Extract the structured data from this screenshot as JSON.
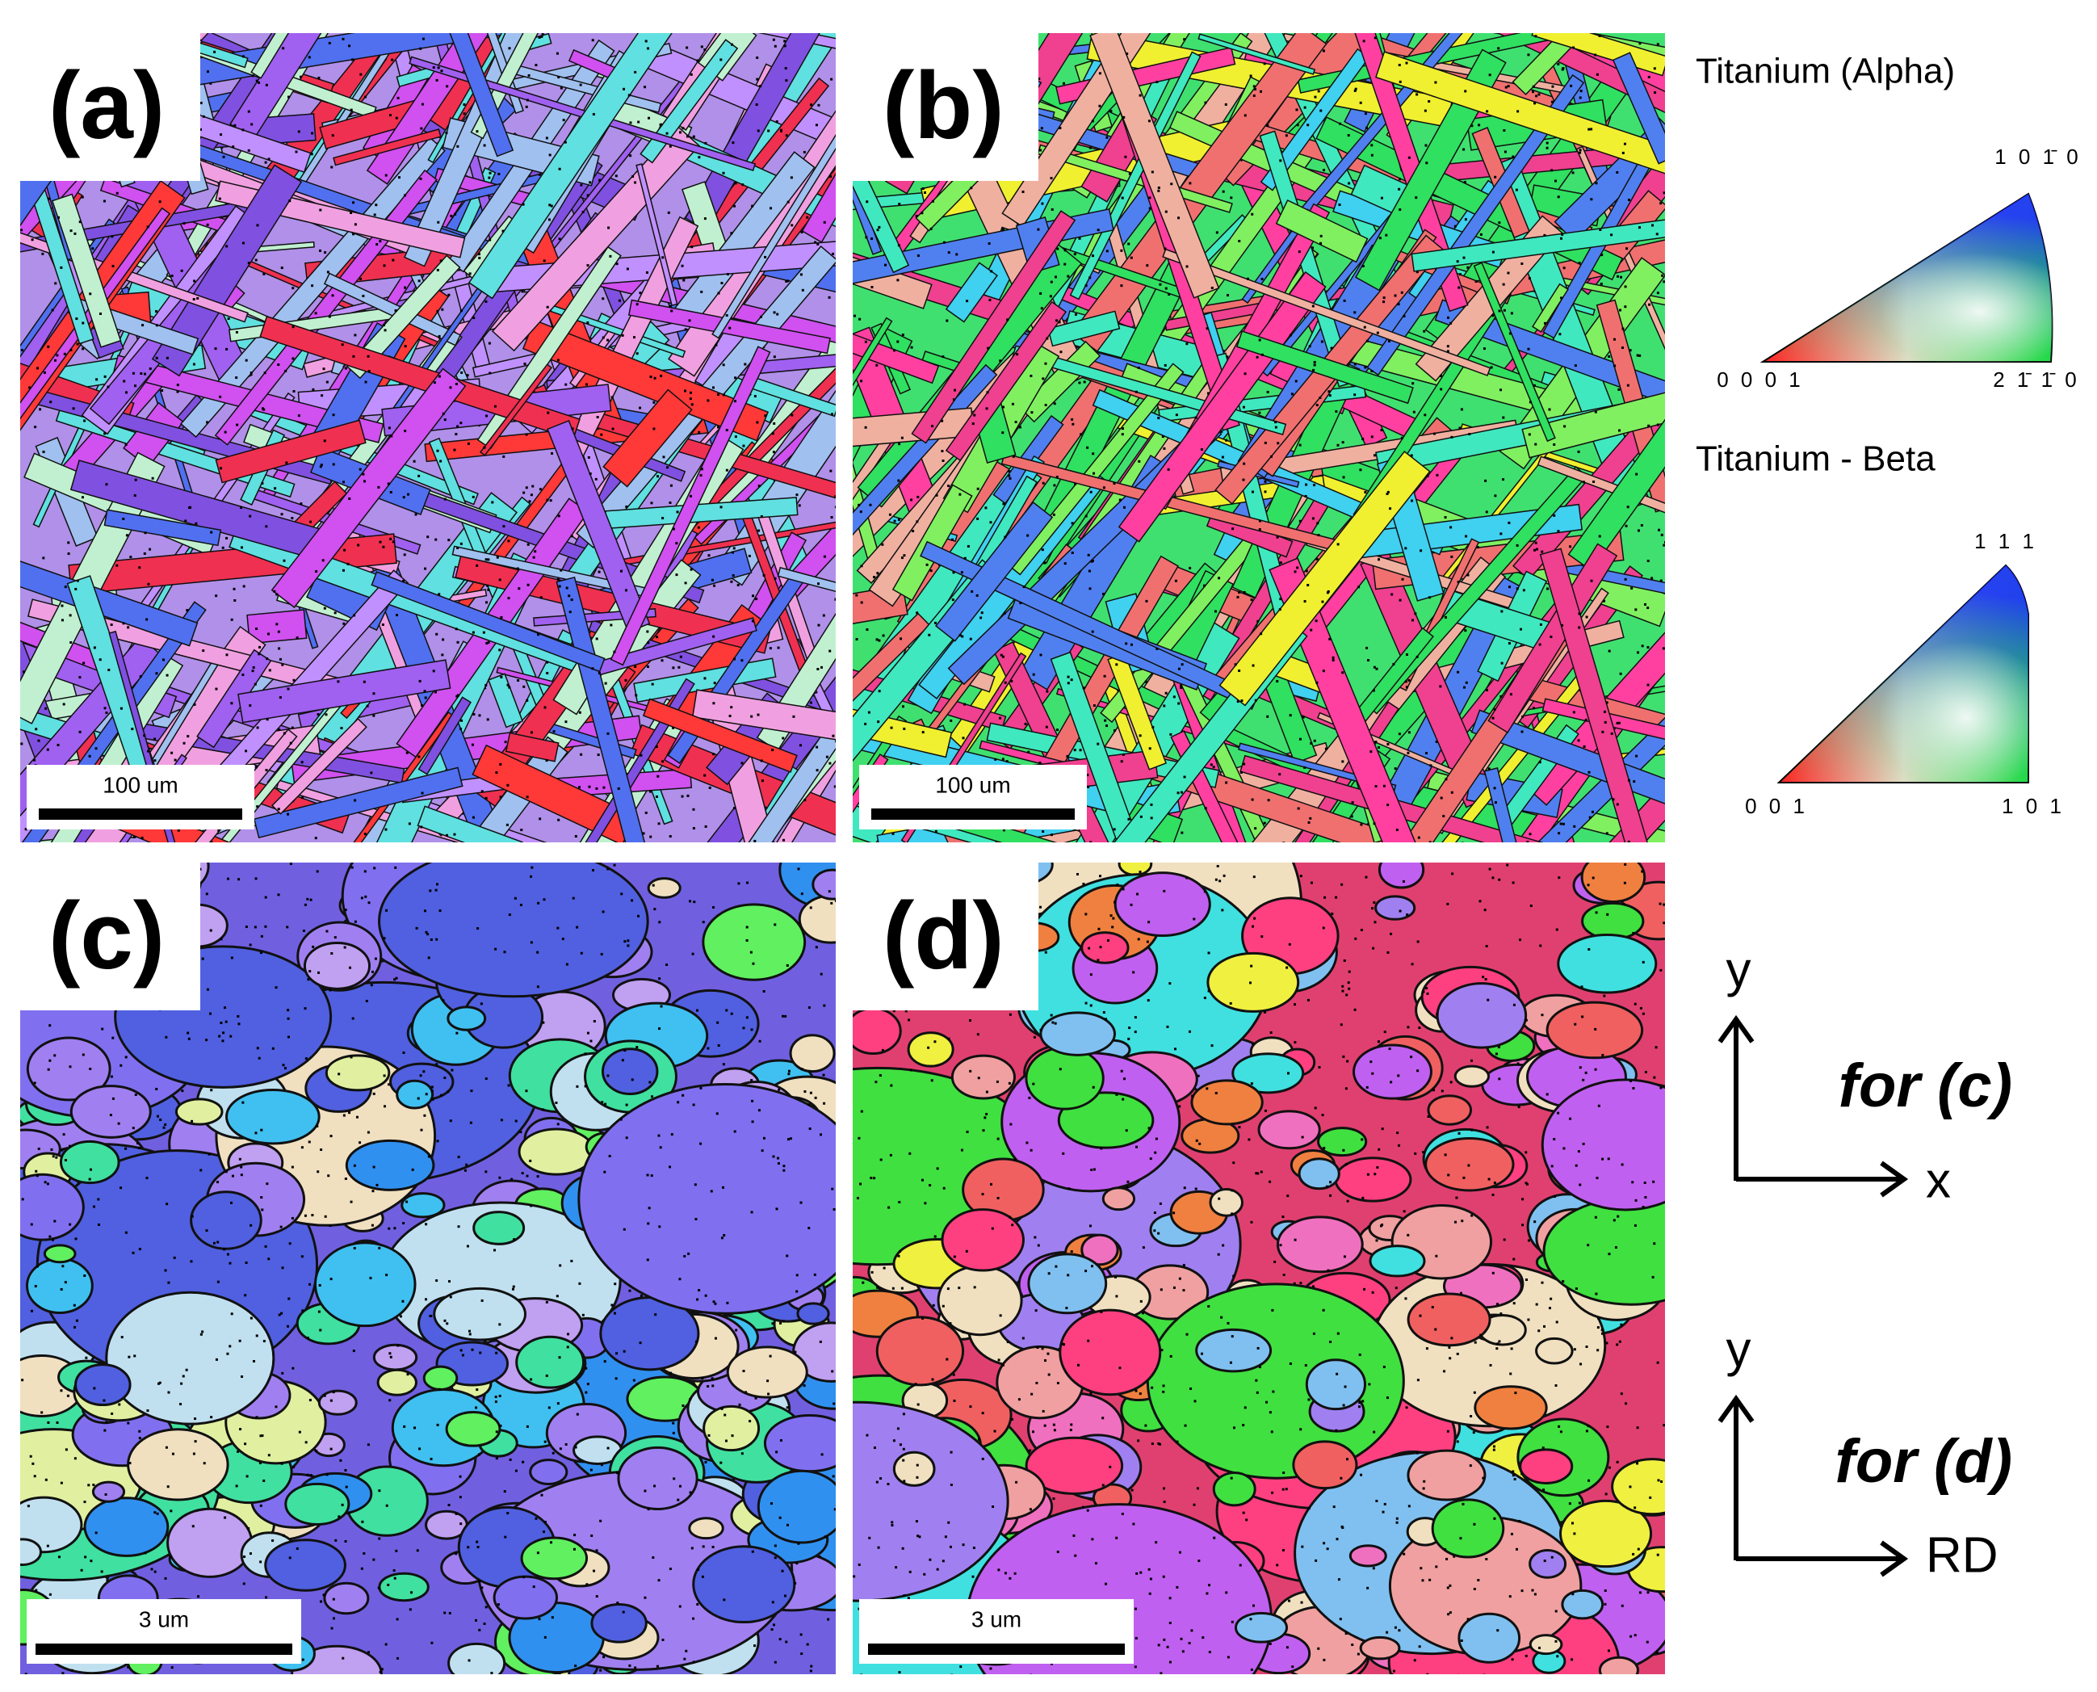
{
  "panels": [
    {
      "label": "(a)",
      "scale_bar": "100 um"
    },
    {
      "label": "(b)",
      "scale_bar": "100 um"
    },
    {
      "label": "(c)",
      "scale_bar": "3 um"
    },
    {
      "label": "(d)",
      "scale_bar": "3 um"
    }
  ],
  "legend": {
    "alpha": {
      "title": "Titanium (Alpha)",
      "corners": [
        "0 0 0 1",
        "2 1̄ 1̄ 0",
        "1 0 1̄ 0"
      ]
    },
    "beta": {
      "title": "Titanium - Beta",
      "corners": [
        "0 0 1",
        "1 0 1",
        "1 1 1"
      ]
    }
  },
  "axes": [
    {
      "y": "y",
      "x": "x",
      "note": "for (c)"
    },
    {
      "y": "y",
      "x": "RD",
      "note": "for (d)"
    }
  ]
}
